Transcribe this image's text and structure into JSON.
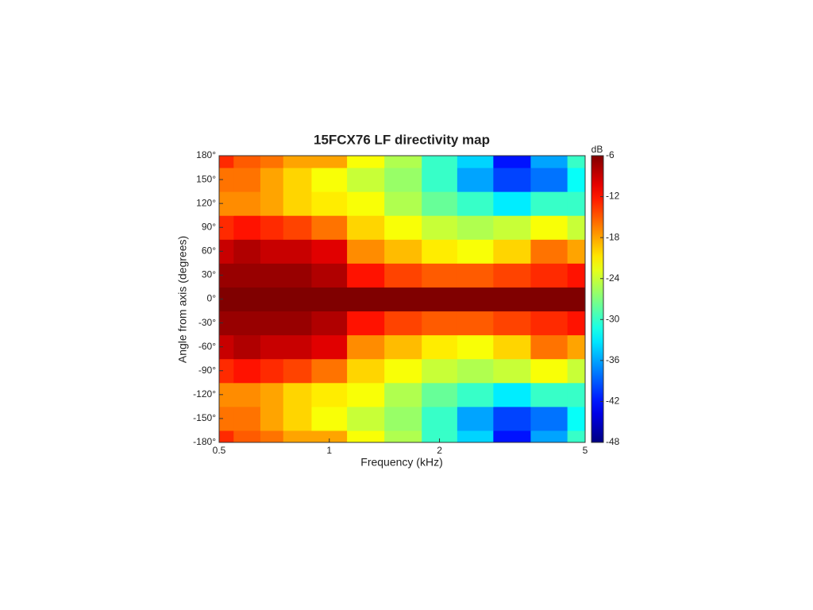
{
  "chart_data": {
    "type": "contour",
    "title": "15FCX76 LF directivity map",
    "xlabel": "Frequency (kHz)",
    "ylabel": "Angle from axis (degrees)",
    "colorbar_label": "dB",
    "x": [
      0.5,
      0.6,
      0.7,
      0.8,
      1,
      1.25,
      1.6,
      2,
      2.5,
      3.15,
      4,
      5
    ],
    "y": [
      -180,
      -150,
      -120,
      -90,
      -60,
      -30,
      0,
      30,
      60,
      90,
      120,
      150,
      180
    ],
    "z": [
      [
        -13,
        -15,
        -16,
        -18,
        -18,
        -22,
        -25,
        -30,
        -34,
        -42,
        -36,
        -30
      ],
      [
        -16,
        -16,
        -18,
        -20,
        -22,
        -24,
        -26,
        -30,
        -36,
        -40,
        -38,
        -32
      ],
      [
        -17,
        -17,
        -18,
        -20,
        -21,
        -22,
        -25,
        -28,
        -30,
        -33,
        -30,
        -30
      ],
      [
        -13,
        -12,
        -13,
        -14,
        -16,
        -20,
        -22,
        -24,
        -25,
        -24,
        -22,
        -24
      ],
      [
        -9,
        -8,
        -9,
        -9,
        -10,
        -17,
        -19,
        -21,
        -22,
        -20,
        -16,
        -18
      ],
      [
        -7,
        -7,
        -7,
        -7,
        -8,
        -12,
        -14,
        -15,
        -15,
        -14,
        -13,
        -12
      ],
      [
        -6,
        -6,
        -6,
        -6,
        -6,
        -6,
        -6,
        -6,
        -6,
        -6,
        -6,
        -6
      ],
      [
        -7,
        -7,
        -7,
        -7,
        -8,
        -12,
        -14,
        -15,
        -15,
        -14,
        -13,
        -12
      ],
      [
        -9,
        -8,
        -9,
        -9,
        -10,
        -17,
        -19,
        -21,
        -22,
        -20,
        -16,
        -18
      ],
      [
        -13,
        -12,
        -13,
        -14,
        -16,
        -20,
        -22,
        -24,
        -25,
        -24,
        -22,
        -24
      ],
      [
        -17,
        -17,
        -18,
        -20,
        -21,
        -22,
        -25,
        -28,
        -30,
        -33,
        -30,
        -30
      ],
      [
        -16,
        -16,
        -18,
        -20,
        -22,
        -24,
        -26,
        -30,
        -36,
        -40,
        -38,
        -32
      ],
      [
        -13,
        -15,
        -16,
        -18,
        -18,
        -22,
        -25,
        -30,
        -34,
        -42,
        -36,
        -30
      ]
    ],
    "xlim": [
      0.5,
      5
    ],
    "xscale": "log",
    "xticks": [
      0.5,
      1,
      2,
      5
    ],
    "ylim": [
      -180,
      180
    ],
    "yticks": [
      {
        "value": -180,
        "label": "-180°"
      },
      {
        "value": -150,
        "label": "-150°"
      },
      {
        "value": -120,
        "label": "-120°"
      },
      {
        "value": -90,
        "label": "-90°"
      },
      {
        "value": -60,
        "label": "-60°"
      },
      {
        "value": -30,
        "label": "-30°"
      },
      {
        "value": 0,
        "label": "0°"
      },
      {
        "value": 30,
        "label": "30°"
      },
      {
        "value": 60,
        "label": "60°"
      },
      {
        "value": 90,
        "label": "90°"
      },
      {
        "value": 120,
        "label": "120°"
      },
      {
        "value": 150,
        "label": "150°"
      },
      {
        "value": 180,
        "label": "180°"
      }
    ],
    "colormap": "jet",
    "clim": [
      -48,
      -6
    ],
    "cticks": [
      -6,
      -12,
      -18,
      -24,
      -30,
      -36,
      -42,
      -48
    ]
  }
}
